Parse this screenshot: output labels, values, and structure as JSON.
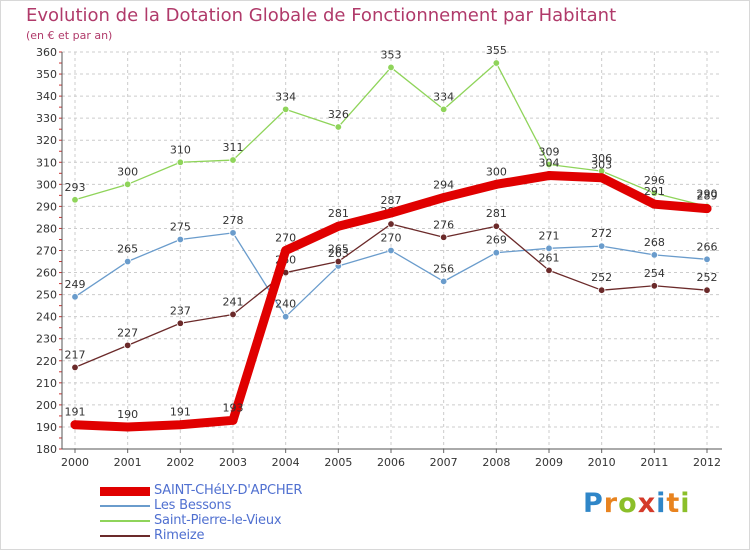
{
  "title": "Evolution de la Dotation Globale de Fonctionnement par Habitant",
  "subtitle": "(en € et par an)",
  "logo": {
    "letters": [
      "P",
      "r",
      "o",
      "x",
      "i",
      "t",
      "i"
    ],
    "colors": [
      "#2f86c8",
      "#e8831f",
      "#8bbf2a",
      "#d43a2a",
      "#2f86c8",
      "#e8831f",
      "#8bbf2a"
    ]
  },
  "chart_data": {
    "type": "line",
    "title": "Evolution de la Dotation Globale de Fonctionnement par Habitant",
    "ylabel": "(en € et par an)",
    "xlabel": "",
    "categories": [
      "2000",
      "2001",
      "2002",
      "2003",
      "2004",
      "2005",
      "2006",
      "2007",
      "2008",
      "2009",
      "2010",
      "2011",
      "2012"
    ],
    "ylim": [
      180,
      360
    ],
    "yticks": [
      180,
      190,
      200,
      210,
      220,
      230,
      240,
      250,
      260,
      270,
      280,
      290,
      300,
      310,
      320,
      330,
      340,
      350,
      360
    ],
    "grid": true,
    "series": [
      {
        "name": "Saint-Pierre-le-Vieux",
        "color": "#8fd45a",
        "values": [
          293,
          300,
          310,
          311,
          334,
          326,
          353,
          334,
          355,
          309,
          306,
          296,
          290
        ]
      },
      {
        "name": "Les Bessons",
        "color": "#6a9ccc",
        "values": [
          249,
          265,
          275,
          278,
          240,
          263,
          270,
          256,
          269,
          271,
          272,
          268,
          266
        ]
      },
      {
        "name": "Rimeize",
        "color": "#6b2a2a",
        "values": [
          217,
          227,
          237,
          241,
          260,
          265,
          282,
          276,
          281,
          261,
          252,
          254,
          252
        ]
      },
      {
        "name": "SAINT-CHéLY-D'APCHER",
        "color": "#e00000",
        "values": [
          191,
          190,
          191,
          193,
          270,
          281,
          287,
          294,
          300,
          304,
          303,
          291,
          289
        ]
      }
    ]
  },
  "legend": [
    {
      "label": "SAINT-CHéLY-D'APCHER",
      "color": "#e00000",
      "width": 9
    },
    {
      "label": "Les Bessons",
      "color": "#6a9ccc",
      "width": 2
    },
    {
      "label": "Saint-Pierre-le-Vieux",
      "color": "#8fd45a",
      "width": 2
    },
    {
      "label": "Rimeize",
      "color": "#6b2a2a",
      "width": 2
    }
  ]
}
